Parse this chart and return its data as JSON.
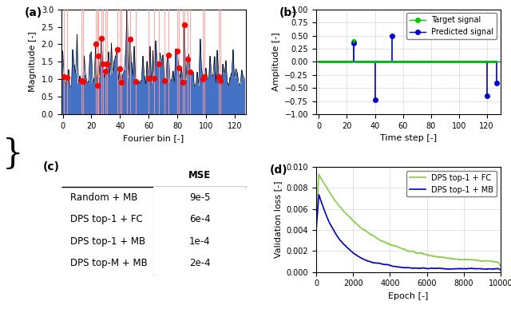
{
  "fig_width": 6.4,
  "fig_height": 3.87,
  "dpi": 100,
  "subplot_a": {
    "label": "(a)",
    "fourier_bins": 128,
    "n_samples": 32,
    "ylim": [
      0.0,
      3.0
    ],
    "yticks": [
      0.0,
      0.5,
      1.0,
      1.5,
      2.0,
      2.5,
      3.0
    ],
    "xlabel": "Fourier bin [-]",
    "ylabel": "Magnitude [-]",
    "bar_color": "#4472c4",
    "line_color": "black",
    "vline_color": "#ff9999",
    "dot_color": "red"
  },
  "subplot_b": {
    "label": "(b)",
    "n_steps": 128,
    "ylim": [
      -1.0,
      1.0
    ],
    "yticks": [
      -1.0,
      -0.75,
      -0.5,
      -0.25,
      0.0,
      0.25,
      0.5,
      0.75,
      1.0
    ],
    "xlabel": "Time step [-]",
    "ylabel": "Amplitude [-]",
    "target_color": "#00cc00",
    "predicted_color": "#0000cc",
    "target_spikes": [
      [
        25,
        0.38
      ]
    ],
    "predicted_spikes": [
      [
        25,
        0.36
      ],
      [
        40,
        -0.72
      ],
      [
        52,
        0.49
      ],
      [
        120,
        -0.65
      ],
      [
        127,
        -0.4
      ]
    ]
  },
  "subplot_c": {
    "label": "(c)",
    "rows": [
      "Random + MB",
      "DPS top-1 + FC",
      "DPS top-1 + MB",
      "DPS top-M + MB"
    ],
    "mse": [
      "9e-5",
      "6e-4",
      "1e-4",
      "2e-4"
    ],
    "col_header": "MSE"
  },
  "subplot_d": {
    "label": "(d)",
    "xlabel": "Epoch [-]",
    "ylabel": "Validation loss [-]",
    "xlim": [
      0,
      10000
    ],
    "ylim": [
      0.0,
      0.01
    ],
    "yticks": [
      0.0,
      0.002,
      0.004,
      0.006,
      0.008,
      0.01
    ],
    "xticks": [
      0,
      2000,
      4000,
      6000,
      8000,
      10000
    ],
    "line1_label": "DPS top-1 + FC",
    "line1_color": "#88cc44",
    "line2_label": "DPS top-1 + MB",
    "line2_color": "#0000cc"
  }
}
